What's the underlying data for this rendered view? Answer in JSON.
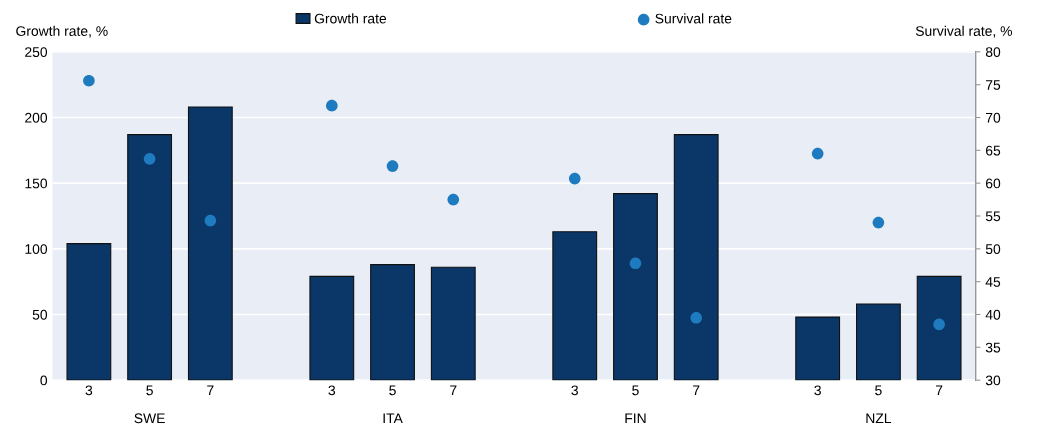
{
  "chart_data": {
    "type": "bar",
    "ylabel": "Growth rate, %",
    "y2label": "Survival rate, %",
    "categories": [
      "3",
      "5",
      "7",
      null,
      "3",
      "5",
      "7",
      null,
      "3",
      "5",
      "7",
      null,
      "3",
      "5",
      "7"
    ],
    "series": [
      {
        "name": "Growth rate",
        "color": "#0b3768",
        "values": [
          104,
          187,
          208,
          null,
          79,
          88,
          86,
          null,
          113,
          142,
          187,
          null,
          48,
          58,
          79
        ]
      },
      {
        "name": "Survival rate",
        "type": "scatter",
        "axis": "y2",
        "color": "#1f7bbf",
        "marker": "circle",
        "values": [
          75.6,
          63.7,
          54.3,
          null,
          71.8,
          62.6,
          57.5,
          null,
          60.7,
          47.8,
          39.5,
          null,
          64.5,
          54,
          38.5
        ]
      }
    ],
    "annotations": [
      "SWE",
      "ITA",
      "FIN",
      "NZL"
    ],
    "ylim": [
      0,
      250
    ],
    "yticks": [
      0,
      50,
      100,
      150,
      200,
      250
    ],
    "y2lim": [
      30,
      80
    ],
    "y2ticks": [
      30,
      35,
      40,
      45,
      50,
      55,
      60,
      65,
      70,
      75,
      80
    ],
    "grid": "y",
    "legend": "top"
  }
}
